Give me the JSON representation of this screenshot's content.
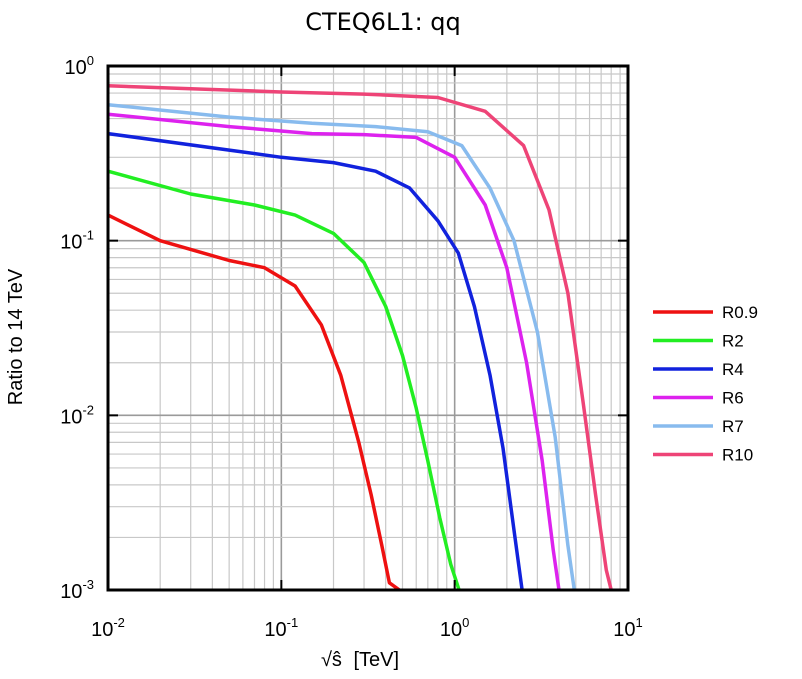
{
  "chart_data": {
    "type": "line",
    "title": "CTEQ6L1: qq",
    "xlabel": "[TeV]",
    "xlabel_symbol": "√ŝ",
    "ylabel": "Ratio to 14 TeV",
    "xscale": "log",
    "yscale": "log",
    "xlim": [
      0.01,
      10
    ],
    "ylim": [
      0.001,
      1
    ],
    "grid": true,
    "legend_position": "right",
    "x_ticks": [
      {
        "base": "10",
        "exp": "-2"
      },
      {
        "base": "10",
        "exp": "-1"
      },
      {
        "base": "10",
        "exp": "0"
      },
      {
        "base": "10",
        "exp": "1"
      }
    ],
    "y_ticks": [
      {
        "base": "10",
        "exp": "-3"
      },
      {
        "base": "10",
        "exp": "-2"
      },
      {
        "base": "10",
        "exp": "-1"
      },
      {
        "base": "10",
        "exp": "0"
      }
    ],
    "series": [
      {
        "name": "R0.9",
        "color": "#ee1111",
        "points": [
          [
            0.01,
            0.14
          ],
          [
            0.02,
            0.1
          ],
          [
            0.05,
            0.077
          ],
          [
            0.08,
            0.07
          ],
          [
            0.12,
            0.055
          ],
          [
            0.17,
            0.033
          ],
          [
            0.22,
            0.017
          ],
          [
            0.28,
            0.007
          ],
          [
            0.33,
            0.0035
          ],
          [
            0.38,
            0.0018
          ],
          [
            0.42,
            0.0011
          ],
          [
            0.48,
            0.001
          ]
        ]
      },
      {
        "name": "R2",
        "color": "#22ee22",
        "points": [
          [
            0.01,
            0.25
          ],
          [
            0.03,
            0.185
          ],
          [
            0.07,
            0.16
          ],
          [
            0.12,
            0.14
          ],
          [
            0.2,
            0.11
          ],
          [
            0.3,
            0.075
          ],
          [
            0.4,
            0.042
          ],
          [
            0.5,
            0.022
          ],
          [
            0.6,
            0.011
          ],
          [
            0.7,
            0.0055
          ],
          [
            0.82,
            0.0026
          ],
          [
            0.95,
            0.0014
          ],
          [
            1.06,
            0.001
          ]
        ]
      },
      {
        "name": "R4",
        "color": "#1122dd",
        "points": [
          [
            0.01,
            0.41
          ],
          [
            0.05,
            0.33
          ],
          [
            0.1,
            0.3
          ],
          [
            0.2,
            0.28
          ],
          [
            0.35,
            0.25
          ],
          [
            0.55,
            0.2
          ],
          [
            0.8,
            0.13
          ],
          [
            1.05,
            0.085
          ],
          [
            1.3,
            0.042
          ],
          [
            1.6,
            0.017
          ],
          [
            1.9,
            0.0065
          ],
          [
            2.2,
            0.0022
          ],
          [
            2.45,
            0.001
          ]
        ]
      },
      {
        "name": "R6",
        "color": "#dd22ee",
        "points": [
          [
            0.01,
            0.53
          ],
          [
            0.05,
            0.45
          ],
          [
            0.15,
            0.41
          ],
          [
            0.3,
            0.405
          ],
          [
            0.6,
            0.39
          ],
          [
            1.0,
            0.3
          ],
          [
            1.5,
            0.16
          ],
          [
            2.0,
            0.07
          ],
          [
            2.6,
            0.02
          ],
          [
            3.2,
            0.0055
          ],
          [
            3.7,
            0.0017
          ],
          [
            4.0,
            0.001
          ]
        ]
      },
      {
        "name": "R7",
        "color": "#88bbee",
        "points": [
          [
            0.01,
            0.6
          ],
          [
            0.05,
            0.51
          ],
          [
            0.15,
            0.47
          ],
          [
            0.35,
            0.45
          ],
          [
            0.7,
            0.42
          ],
          [
            1.1,
            0.35
          ],
          [
            1.6,
            0.2
          ],
          [
            2.2,
            0.1
          ],
          [
            3.0,
            0.03
          ],
          [
            3.8,
            0.0075
          ],
          [
            4.5,
            0.0018
          ],
          [
            4.9,
            0.001
          ]
        ]
      },
      {
        "name": "R10",
        "color": "#ee4477",
        "points": [
          [
            0.01,
            0.77
          ],
          [
            0.1,
            0.71
          ],
          [
            0.3,
            0.69
          ],
          [
            0.8,
            0.66
          ],
          [
            1.5,
            0.55
          ],
          [
            2.5,
            0.35
          ],
          [
            3.5,
            0.15
          ],
          [
            4.5,
            0.05
          ],
          [
            5.5,
            0.012
          ],
          [
            6.5,
            0.0035
          ],
          [
            7.5,
            0.0013
          ],
          [
            8.0,
            0.001
          ]
        ]
      }
    ]
  }
}
